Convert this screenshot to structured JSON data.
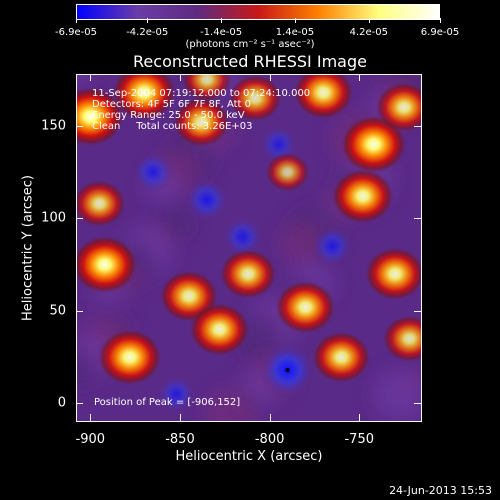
{
  "chart_data": {
    "type": "heatmap",
    "title": "Reconstructed RHESSI Image",
    "xlabel": "Heliocentric X (arcsec)",
    "ylabel": "Heliocentric Y (arcsec)",
    "xlim": [
      -908,
      -715
    ],
    "ylim": [
      -10,
      178
    ],
    "xticks": [
      "-900",
      "-850",
      "-800",
      "-750"
    ],
    "xtick_values": [
      -900,
      -850,
      -800,
      -750
    ],
    "yticks": [
      "0",
      "50",
      "100",
      "150"
    ],
    "ytick_values": [
      0,
      50,
      100,
      150
    ],
    "colorbar": {
      "ticks": [
        "-6.9e-05",
        "-4.2e-05",
        "-1.4e-05",
        "1.4e-05",
        "4.2e-05",
        "6.9e-05"
      ],
      "tick_values": [
        -6.9e-05,
        -4.2e-05,
        -1.4e-05,
        1.4e-05,
        4.2e-05,
        6.9e-05
      ],
      "range": [
        -6.9e-05,
        6.9e-05
      ],
      "unit": "(photons cm⁻² s⁻¹ asec⁻²)",
      "colors": [
        "#0000ff",
        "#6a3ca8",
        "#5e2a80",
        "#c81818",
        "#ff8000",
        "#ffff80",
        "#ffffff"
      ]
    },
    "annotations": {
      "time_range": "11-Sep-2004 07:19:12.000 to 07:24:10.000",
      "detectors": "Detectors: 4F 5F 6F 7F 8F, Att 0",
      "energy": "Energy Range: 25.0 - 50.0 keV",
      "method": "Clean     Total counts: 3.26E+03",
      "peak": "Position of Peak = [-906,152]"
    },
    "peak_position": [
      -906,
      152
    ],
    "bright_sources": [
      {
        "x": -900,
        "y": 155,
        "level": 1.0
      },
      {
        "x": -870,
        "y": 168,
        "level": 0.9
      },
      {
        "x": -838,
        "y": 152,
        "level": 0.7
      },
      {
        "x": -808,
        "y": 165,
        "level": 0.6
      },
      {
        "x": -770,
        "y": 168,
        "level": 0.8
      },
      {
        "x": -742,
        "y": 140,
        "level": 0.95
      },
      {
        "x": -725,
        "y": 160,
        "level": 0.7
      },
      {
        "x": -748,
        "y": 112,
        "level": 0.85
      },
      {
        "x": -895,
        "y": 108,
        "level": 0.6
      },
      {
        "x": -892,
        "y": 75,
        "level": 0.95
      },
      {
        "x": -878,
        "y": 25,
        "level": 0.9
      },
      {
        "x": -845,
        "y": 58,
        "level": 0.75
      },
      {
        "x": -828,
        "y": 40,
        "level": 0.8
      },
      {
        "x": -812,
        "y": 70,
        "level": 0.7
      },
      {
        "x": -780,
        "y": 52,
        "level": 0.8
      },
      {
        "x": -760,
        "y": 25,
        "level": 0.75
      },
      {
        "x": -730,
        "y": 70,
        "level": 0.8
      },
      {
        "x": -722,
        "y": 35,
        "level": 0.6
      },
      {
        "x": -835,
        "y": 175,
        "level": 0.5
      },
      {
        "x": -790,
        "y": 125,
        "level": 0.35
      }
    ],
    "dim_sources": [
      {
        "x": -790,
        "y": 18,
        "level": 1.0
      },
      {
        "x": -835,
        "y": 110,
        "level": 0.6
      },
      {
        "x": -815,
        "y": 90,
        "level": 0.5
      },
      {
        "x": -865,
        "y": 125,
        "level": 0.5
      },
      {
        "x": -765,
        "y": 85,
        "level": 0.5
      },
      {
        "x": -852,
        "y": 5,
        "level": 0.4
      },
      {
        "x": -795,
        "y": 140,
        "level": 0.4
      }
    ]
  },
  "timestamp": "24-Jun-2013 15:53"
}
